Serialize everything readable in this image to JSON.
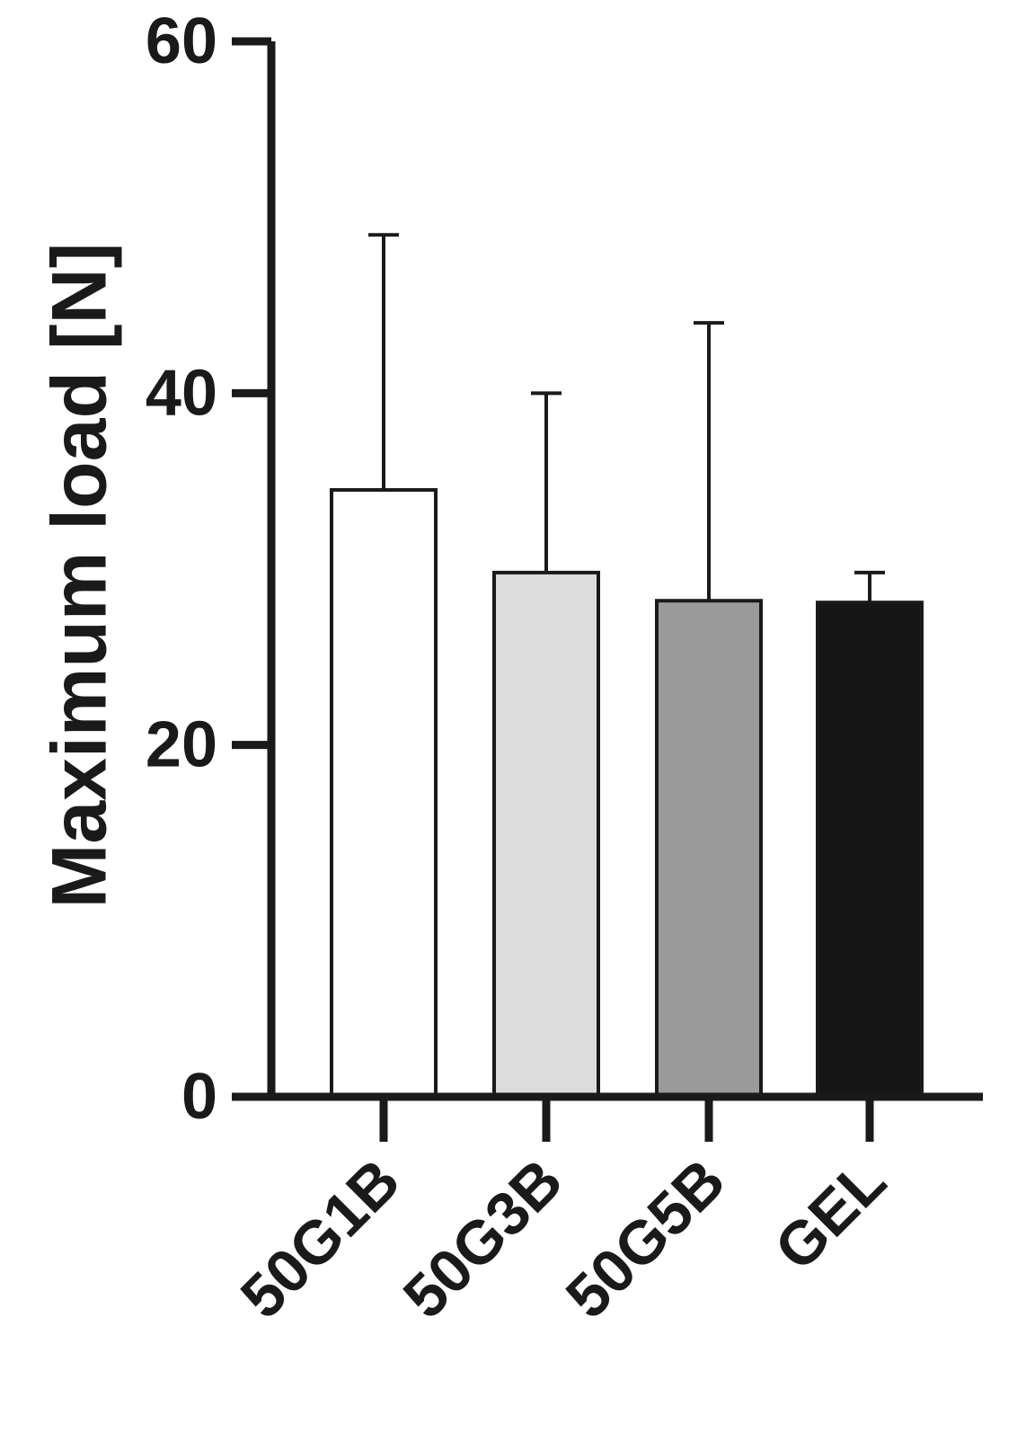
{
  "chart_data": {
    "type": "bar",
    "title": "",
    "xlabel": "",
    "ylabel": "Maximum load [N]",
    "ylim": [
      0,
      60
    ],
    "yticks": [
      0,
      20,
      40,
      60
    ],
    "categories": [
      "50G1B",
      "50G3B",
      "50G5B",
      "GEL"
    ],
    "values": [
      34.5,
      29.8,
      28.2,
      28.1
    ],
    "error_upper": [
      49.0,
      40.0,
      44.0,
      29.8
    ],
    "bar_colors": [
      "#ffffff",
      "#dcdcdc",
      "#9a9a9a",
      "#161616"
    ],
    "grid": false,
    "legend": "none"
  }
}
